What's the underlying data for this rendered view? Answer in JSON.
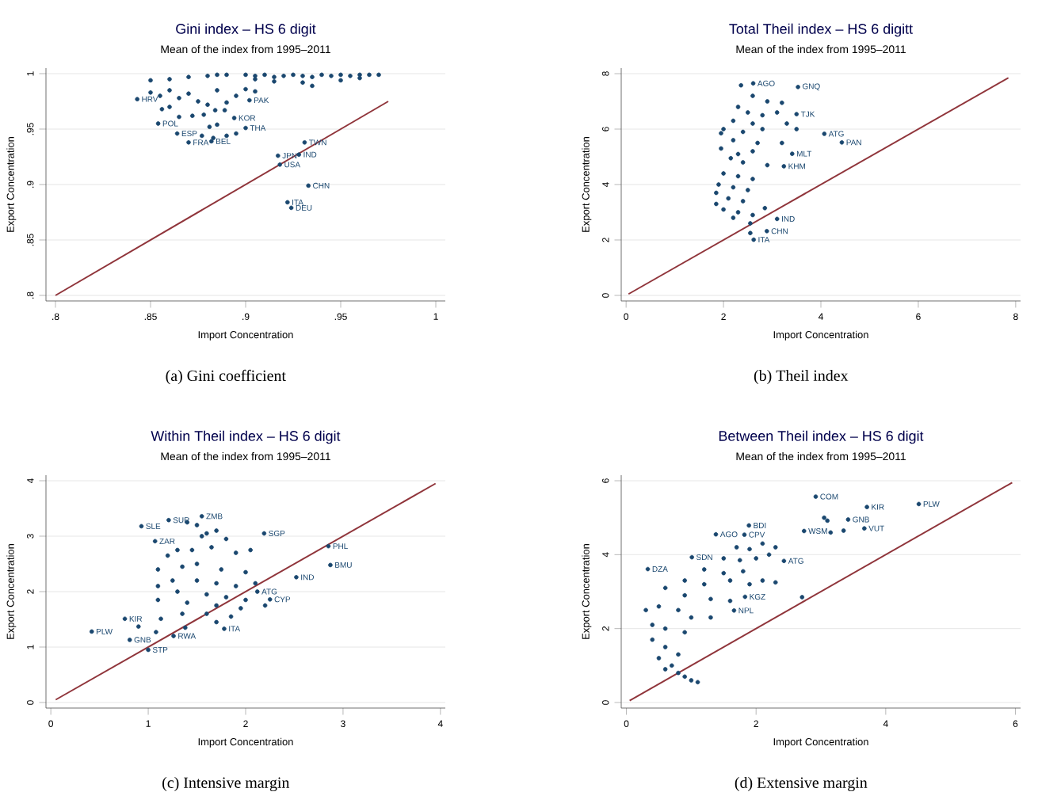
{
  "chart_data": [
    {
      "type": "scatter",
      "title": "Gini index – HS 6 digit",
      "subtitle": "Mean of the  index from 1995–2011",
      "xlabel": "Import Concentration",
      "ylabel": "Export Concentration",
      "grid": "y",
      "xlim": [
        0.795,
        1.005
      ],
      "ylim": [
        0.795,
        1.005
      ],
      "xticks": [
        {
          "value": 0.8,
          "label": ".8"
        },
        {
          "value": 0.85,
          "label": ".85"
        },
        {
          "value": 0.9,
          "label": ".9"
        },
        {
          "value": 0.95,
          "label": ".95"
        },
        {
          "value": 1,
          "label": "1"
        }
      ],
      "yticks": [
        {
          "value": 0.8,
          "label": ".8"
        },
        {
          "value": 0.85,
          "label": ".85"
        },
        {
          "value": 0.9,
          "label": ".9"
        },
        {
          "value": 0.95,
          "label": ".95"
        },
        {
          "value": 1,
          "label": "1"
        }
      ],
      "series": [
        {
          "type": "scatter",
          "marker": "circle",
          "color": "#1a476f",
          "x": [
            0.86,
            0.87,
            0.88,
            0.885,
            0.89,
            0.9,
            0.905,
            0.91,
            0.915,
            0.92,
            0.925,
            0.93,
            0.935,
            0.94,
            0.945,
            0.95,
            0.955,
            0.96,
            0.965,
            0.97,
            0.905,
            0.915,
            0.93,
            0.935,
            0.95,
            0.96,
            0.85,
            0.85,
            0.855,
            0.86,
            0.865,
            0.87,
            0.875,
            0.88,
            0.885,
            0.89,
            0.895,
            0.9,
            0.905,
            0.86,
            0.856,
            0.865,
            0.872,
            0.878,
            0.884,
            0.889,
            0.881,
            0.885,
            0.89,
            0.895,
            0.877,
            0.883,
            0.843,
            0.854,
            0.9,
            0.894,
            0.902,
            0.882,
            0.87,
            0.864,
            0.931,
            0.917,
            0.928,
            0.918,
            0.933,
            0.922,
            0.924
          ],
          "values": [
            0.995,
            0.997,
            0.998,
            0.999,
            0.999,
            0.999,
            0.998,
            0.999,
            0.997,
            0.998,
            0.999,
            0.998,
            0.997,
            0.999,
            0.998,
            0.999,
            0.998,
            0.999,
            0.999,
            0.999,
            0.995,
            0.993,
            0.992,
            0.989,
            0.994,
            0.996,
            0.994,
            0.983,
            0.98,
            0.985,
            0.978,
            0.982,
            0.975,
            0.972,
            0.985,
            0.974,
            0.98,
            0.986,
            0.984,
            0.97,
            0.968,
            0.961,
            0.962,
            0.963,
            0.967,
            0.967,
            0.952,
            0.954,
            0.944,
            0.946,
            0.944,
            0.942,
            0.977,
            0.955,
            0.951,
            0.96,
            0.976,
            0.939,
            0.938,
            0.946,
            0.938,
            0.926,
            0.927,
            0.918,
            0.899,
            0.884,
            0.879
          ]
        },
        {
          "type": "line",
          "color": "#90353b",
          "x": [
            0.8,
            0.975
          ],
          "values": [
            0.8,
            0.975
          ]
        }
      ],
      "annotations": [
        {
          "text": "HRV",
          "x": 0.843,
          "y": 0.977
        },
        {
          "text": "POL",
          "x": 0.854,
          "y": 0.955
        },
        {
          "text": "THA",
          "x": 0.9,
          "y": 0.951
        },
        {
          "text": "KOR",
          "x": 0.894,
          "y": 0.96
        },
        {
          "text": "PAK",
          "x": 0.902,
          "y": 0.976
        },
        {
          "text": "BEL",
          "x": 0.882,
          "y": 0.939
        },
        {
          "text": "FRA",
          "x": 0.87,
          "y": 0.938
        },
        {
          "text": "ESP",
          "x": 0.864,
          "y": 0.946
        },
        {
          "text": "TWN",
          "x": 0.931,
          "y": 0.938
        },
        {
          "text": "JPN",
          "x": 0.917,
          "y": 0.926
        },
        {
          "text": "IND",
          "x": 0.928,
          "y": 0.927
        },
        {
          "text": "USA",
          "x": 0.918,
          "y": 0.918
        },
        {
          "text": "CHN",
          "x": 0.933,
          "y": 0.899
        },
        {
          "text": "ITA",
          "x": 0.922,
          "y": 0.884
        },
        {
          "text": "DEU",
          "x": 0.924,
          "y": 0.879
        },
        "(a) Gini coefficient"
      ]
    },
    {
      "type": "scatter",
      "title": "Total Theil index – HS 6 digitt",
      "subtitle": "Mean of the  index from 1995–2011",
      "xlabel": "Import Concentration",
      "ylabel": "Export Concentration",
      "grid": "y",
      "xlim": [
        -0.1,
        8.1
      ],
      "ylim": [
        -0.2,
        8.2
      ],
      "xticks": [
        0,
        2,
        4,
        6,
        8
      ],
      "yticks": [
        0,
        2,
        4,
        6,
        8
      ],
      "series": [
        {
          "type": "scatter",
          "marker": "circle",
          "color": "#1a476f",
          "x": [
            2.36,
            2.6,
            2.9,
            3.2,
            2.3,
            2.5,
            2.8,
            3.1,
            2.2,
            2.6,
            3.3,
            2.0,
            2.4,
            2.8,
            3.5,
            1.95,
            2.2,
            2.7,
            3.2,
            1.95,
            2.3,
            2.6,
            2.15,
            2.4,
            2.9,
            2.0,
            2.3,
            2.6,
            1.9,
            2.2,
            2.5,
            1.85,
            2.1,
            2.4,
            1.85,
            2.0,
            2.3,
            2.6,
            2.2,
            2.85,
            2.55,
            2.55,
            2.61,
            3.53,
            3.5,
            4.07,
            4.43,
            3.41,
            3.24,
            3.1,
            2.89,
            2.62
          ],
          "values": [
            7.58,
            7.2,
            7.0,
            6.95,
            6.8,
            6.6,
            6.5,
            6.6,
            6.3,
            6.2,
            6.2,
            6.0,
            5.9,
            6.0,
            6.0,
            5.85,
            5.6,
            5.5,
            5.5,
            5.3,
            5.1,
            5.2,
            4.95,
            4.8,
            4.7,
            4.4,
            4.3,
            4.2,
            4.0,
            3.9,
            3.8,
            3.7,
            3.5,
            3.4,
            3.3,
            3.1,
            3.0,
            2.9,
            2.8,
            3.15,
            2.6,
            2.25,
            7.65,
            7.52,
            6.54,
            5.83,
            5.52,
            5.11,
            4.66,
            2.76,
            2.32,
            2.01
          ]
        },
        {
          "type": "line",
          "color": "#90353b",
          "x": [
            0.05,
            7.85
          ],
          "values": [
            0.05,
            7.85
          ]
        }
      ],
      "annotations": [
        {
          "text": "AGO",
          "x": 2.61,
          "y": 7.65
        },
        {
          "text": "GNQ",
          "x": 3.53,
          "y": 7.52
        },
        {
          "text": "TJK",
          "x": 3.5,
          "y": 6.54
        },
        {
          "text": "ATG",
          "x": 4.07,
          "y": 5.83
        },
        {
          "text": "PAN",
          "x": 4.43,
          "y": 5.52
        },
        {
          "text": "MLT",
          "x": 3.41,
          "y": 5.11
        },
        {
          "text": "KHM",
          "x": 3.24,
          "y": 4.66
        },
        {
          "text": "IND",
          "x": 3.1,
          "y": 2.76
        },
        {
          "text": "CHN",
          "x": 2.89,
          "y": 2.32
        },
        {
          "text": "ITA",
          "x": 2.62,
          "y": 2.01
        },
        "(b) Theil index"
      ]
    },
    {
      "type": "scatter",
      "title": "Within Theil index – HS 6 digit",
      "subtitle": "Mean of the  index from 1995–2011",
      "xlabel": "Import Concentration",
      "ylabel": "Export Concentration",
      "grid": "y",
      "xlim": [
        -0.05,
        4.05
      ],
      "ylim": [
        -0.1,
        4.1
      ],
      "xticks": [
        0,
        1,
        2,
        3,
        4
      ],
      "yticks": [
        0,
        1,
        2,
        3,
        4
      ],
      "series": [
        {
          "type": "scatter",
          "marker": "circle",
          "color": "#1a476f",
          "x": [
            1.4,
            1.5,
            1.6,
            1.7,
            1.8,
            1.3,
            1.45,
            1.65,
            1.9,
            2.05,
            1.2,
            1.1,
            1.35,
            1.5,
            1.75,
            2.0,
            1.25,
            1.5,
            1.7,
            1.9,
            2.1,
            1.1,
            1.3,
            1.6,
            1.8,
            2.0,
            1.1,
            1.4,
            1.7,
            1.95,
            2.2,
            1.35,
            1.6,
            1.85,
            1.13,
            0.9,
            1.08,
            1.38,
            1.7,
            1.55,
            0.93,
            1.21,
            1.55,
            1.07,
            2.19,
            2.85,
            2.87,
            2.52,
            2.12,
            2.25,
            0.76,
            0.42,
            0.81,
            1.0,
            1.26,
            1.78
          ],
          "values": [
            3.25,
            3.2,
            3.05,
            3.1,
            2.95,
            2.75,
            2.75,
            2.8,
            2.7,
            2.75,
            2.65,
            2.4,
            2.45,
            2.5,
            2.4,
            2.35,
            2.2,
            2.2,
            2.15,
            2.1,
            2.15,
            2.1,
            2.0,
            1.95,
            1.9,
            1.85,
            1.85,
            1.8,
            1.75,
            1.7,
            1.75,
            1.6,
            1.6,
            1.55,
            1.51,
            1.37,
            1.27,
            1.35,
            1.45,
            3.0,
            3.18,
            3.29,
            3.36,
            2.91,
            3.05,
            2.82,
            2.48,
            2.26,
            2.0,
            1.86,
            1.51,
            1.28,
            1.13,
            0.95,
            1.2,
            1.33
          ]
        },
        {
          "type": "line",
          "color": "#90353b",
          "x": [
            0.05,
            3.95
          ],
          "values": [
            0.05,
            3.95
          ]
        }
      ],
      "annotations": [
        {
          "text": "SLE",
          "x": 0.93,
          "y": 3.18
        },
        {
          "text": "SUR",
          "x": 1.21,
          "y": 3.29
        },
        {
          "text": "ZMB",
          "x": 1.55,
          "y": 3.36
        },
        {
          "text": "ZAR",
          "x": 1.07,
          "y": 2.91
        },
        {
          "text": "SGP",
          "x": 2.19,
          "y": 3.05
        },
        {
          "text": "PHL",
          "x": 2.85,
          "y": 2.82
        },
        {
          "text": "BMU",
          "x": 2.87,
          "y": 2.48
        },
        {
          "text": "IND",
          "x": 2.52,
          "y": 2.26
        },
        {
          "text": "ATG",
          "x": 2.12,
          "y": 2.0
        },
        {
          "text": "CYP",
          "x": 2.25,
          "y": 1.86
        },
        {
          "text": "KIR",
          "x": 0.76,
          "y": 1.51
        },
        {
          "text": "PLW",
          "x": 0.42,
          "y": 1.28
        },
        {
          "text": "GNB",
          "x": 0.81,
          "y": 1.13
        },
        {
          "text": "STP",
          "x": 1.0,
          "y": 0.95
        },
        {
          "text": "RWA",
          "x": 1.26,
          "y": 1.2
        },
        {
          "text": "ITA",
          "x": 1.78,
          "y": 1.33
        },
        "(c) Intensive margin"
      ]
    },
    {
      "type": "scatter",
      "title": "Between Theil index – HS 6 digit",
      "subtitle": "Mean of the  index from 1995–2011",
      "xlabel": "Import Concentration",
      "ylabel": "Export Concentration",
      "grid": "y",
      "xlim": [
        -0.08,
        6.08
      ],
      "ylim": [
        -0.15,
        6.15
      ],
      "xticks": [
        0,
        2,
        4,
        6
      ],
      "yticks": [
        0,
        2,
        4,
        6
      ],
      "series": [
        {
          "type": "scatter",
          "marker": "circle",
          "color": "#1a476f",
          "x": [
            3.05,
            3.1,
            3.35,
            3.15,
            1.7,
            1.9,
            2.1,
            2.3,
            2.2,
            1.5,
            1.75,
            2.0,
            1.2,
            1.5,
            1.8,
            2.1,
            2.3,
            0.9,
            1.2,
            1.6,
            1.9,
            0.6,
            0.9,
            1.3,
            1.6,
            2.71,
            0.3,
            0.5,
            0.8,
            1.0,
            1.3,
            0.4,
            0.6,
            0.9,
            0.4,
            0.6,
            0.8,
            0.5,
            0.7,
            0.8,
            0.9,
            1.0,
            1.1,
            0.6,
            2.92,
            3.71,
            4.51,
            3.42,
            3.67,
            2.74,
            1.38,
            1.82,
            1.89,
            2.43,
            0.33,
            1.01,
            1.83,
            1.66
          ],
          "values": [
            5.0,
            4.92,
            4.65,
            4.6,
            4.2,
            4.15,
            4.3,
            4.2,
            4.0,
            3.9,
            3.85,
            3.9,
            3.6,
            3.5,
            3.55,
            3.3,
            3.25,
            3.3,
            3.2,
            3.3,
            3.2,
            3.1,
            2.9,
            2.8,
            2.75,
            2.85,
            2.5,
            2.6,
            2.5,
            2.3,
            2.3,
            2.1,
            2.0,
            1.9,
            1.7,
            1.5,
            1.3,
            1.2,
            1.0,
            0.8,
            0.7,
            0.6,
            0.55,
            0.9,
            5.57,
            5.29,
            5.37,
            4.95,
            4.71,
            4.64,
            4.55,
            4.54,
            4.79,
            3.83,
            3.61,
            3.93,
            2.86,
            2.49
          ]
        },
        {
          "type": "line",
          "color": "#90353b",
          "x": [
            0.05,
            5.95
          ],
          "values": [
            0.05,
            5.95
          ]
        }
      ],
      "annotations": [
        {
          "text": "COM",
          "x": 2.92,
          "y": 5.57
        },
        {
          "text": "KIR",
          "x": 3.71,
          "y": 5.29
        },
        {
          "text": "PLW",
          "x": 4.51,
          "y": 5.37
        },
        {
          "text": "GNB",
          "x": 3.42,
          "y": 4.95
        },
        {
          "text": "VUT",
          "x": 3.67,
          "y": 4.71
        },
        {
          "text": "WSM",
          "x": 2.74,
          "y": 4.64
        },
        {
          "text": "AGO",
          "x": 1.38,
          "y": 4.55
        },
        {
          "text": "CPV",
          "x": 1.82,
          "y": 4.54
        },
        {
          "text": "BDI",
          "x": 1.89,
          "y": 4.79
        },
        {
          "text": "ATG",
          "x": 2.43,
          "y": 3.83
        },
        {
          "text": "DZA",
          "x": 0.33,
          "y": 3.61
        },
        {
          "text": "SDN",
          "x": 1.01,
          "y": 3.93
        },
        {
          "text": "KGZ",
          "x": 1.83,
          "y": 2.86
        },
        {
          "text": "NPL",
          "x": 1.66,
          "y": 2.49
        },
        "(d) Extensive margin"
      ]
    }
  ]
}
